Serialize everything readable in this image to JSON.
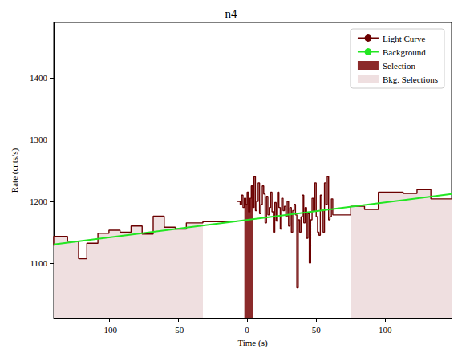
{
  "chart_data": {
    "type": "line",
    "title": "n4",
    "x_label": "Time (s)",
    "y_label": "Rate (cnts/s)",
    "xlim": [
      -140,
      148
    ],
    "ylim": [
      1010,
      1490
    ],
    "xticks": [
      -100,
      -50,
      0,
      50,
      100
    ],
    "yticks": [
      1100,
      1200,
      1300,
      1400
    ],
    "legend": "upper right",
    "series": [
      {
        "name": "Light Curve",
        "color": "#6b0000",
        "line_style": "step",
        "x": [
          -140,
          -130,
          -122,
          -116,
          -108,
          -100,
          -92,
          -84,
          -76,
          -68,
          -60,
          -52,
          -44,
          -32,
          -20,
          -8,
          -7,
          -5,
          -4,
          -3,
          -2,
          -1,
          0,
          1,
          2,
          3,
          4,
          5,
          6,
          7,
          8,
          9,
          10,
          11,
          12,
          13,
          14,
          15,
          16,
          17,
          18,
          19,
          20,
          21,
          22,
          23,
          24,
          25,
          26,
          27,
          28,
          29,
          30,
          31,
          32,
          33,
          34,
          35,
          36,
          37,
          38,
          39,
          40,
          41,
          42,
          43,
          44,
          45,
          46,
          47,
          48,
          49,
          50,
          51,
          52,
          53,
          54,
          55,
          56,
          57,
          58,
          59,
          60,
          61,
          62,
          75,
          85,
          95,
          113,
          123,
          133,
          140,
          148
        ],
        "values": [
          1128,
          1143,
          1135,
          1107,
          1132,
          1148,
          1153,
          1150,
          1160,
          1147,
          1176,
          1158,
          1155,
          1165,
          1167,
          1167,
          null,
          1200,
          1195,
          1210,
          1190,
          1205,
          1195,
          1215,
          1183,
          1205,
          1225,
          1190,
          1240,
          1185,
          1200,
          1230,
          1180,
          1195,
          1225,
          1212,
          1165,
          1208,
          1178,
          1190,
          1215,
          1183,
          1150,
          1198,
          1168,
          1215,
          1190,
          1155,
          1205,
          1185,
          1192,
          1175,
          1200,
          1160,
          1190,
          1150,
          1185,
          1195,
          1178,
          1060,
          1170,
          1150,
          1175,
          1210,
          1165,
          1190,
          1140,
          1180,
          1100,
          1170,
          1205,
          1185,
          1230,
          1175,
          1150,
          1145,
          1210,
          1185,
          1150,
          1230,
          1195,
          1240,
          1170,
          1175,
          1204,
          1178,
          1192,
          1187,
          1215,
          1213,
          1219,
          1204,
          1204
        ]
      },
      {
        "name": "Background",
        "color": "#22e622",
        "x": [
          -140,
          148
        ],
        "values": [
          1130,
          1212
        ]
      }
    ],
    "selections": [
      {
        "name": "Selection",
        "color": "#8b2a2a",
        "ranges": [
          [
            -2,
            4
          ]
        ]
      },
      {
        "name": "Bkg. Selections",
        "color": "#efdfe0",
        "ranges": [
          [
            -140,
            -32
          ],
          [
            75,
            148
          ]
        ]
      }
    ]
  }
}
